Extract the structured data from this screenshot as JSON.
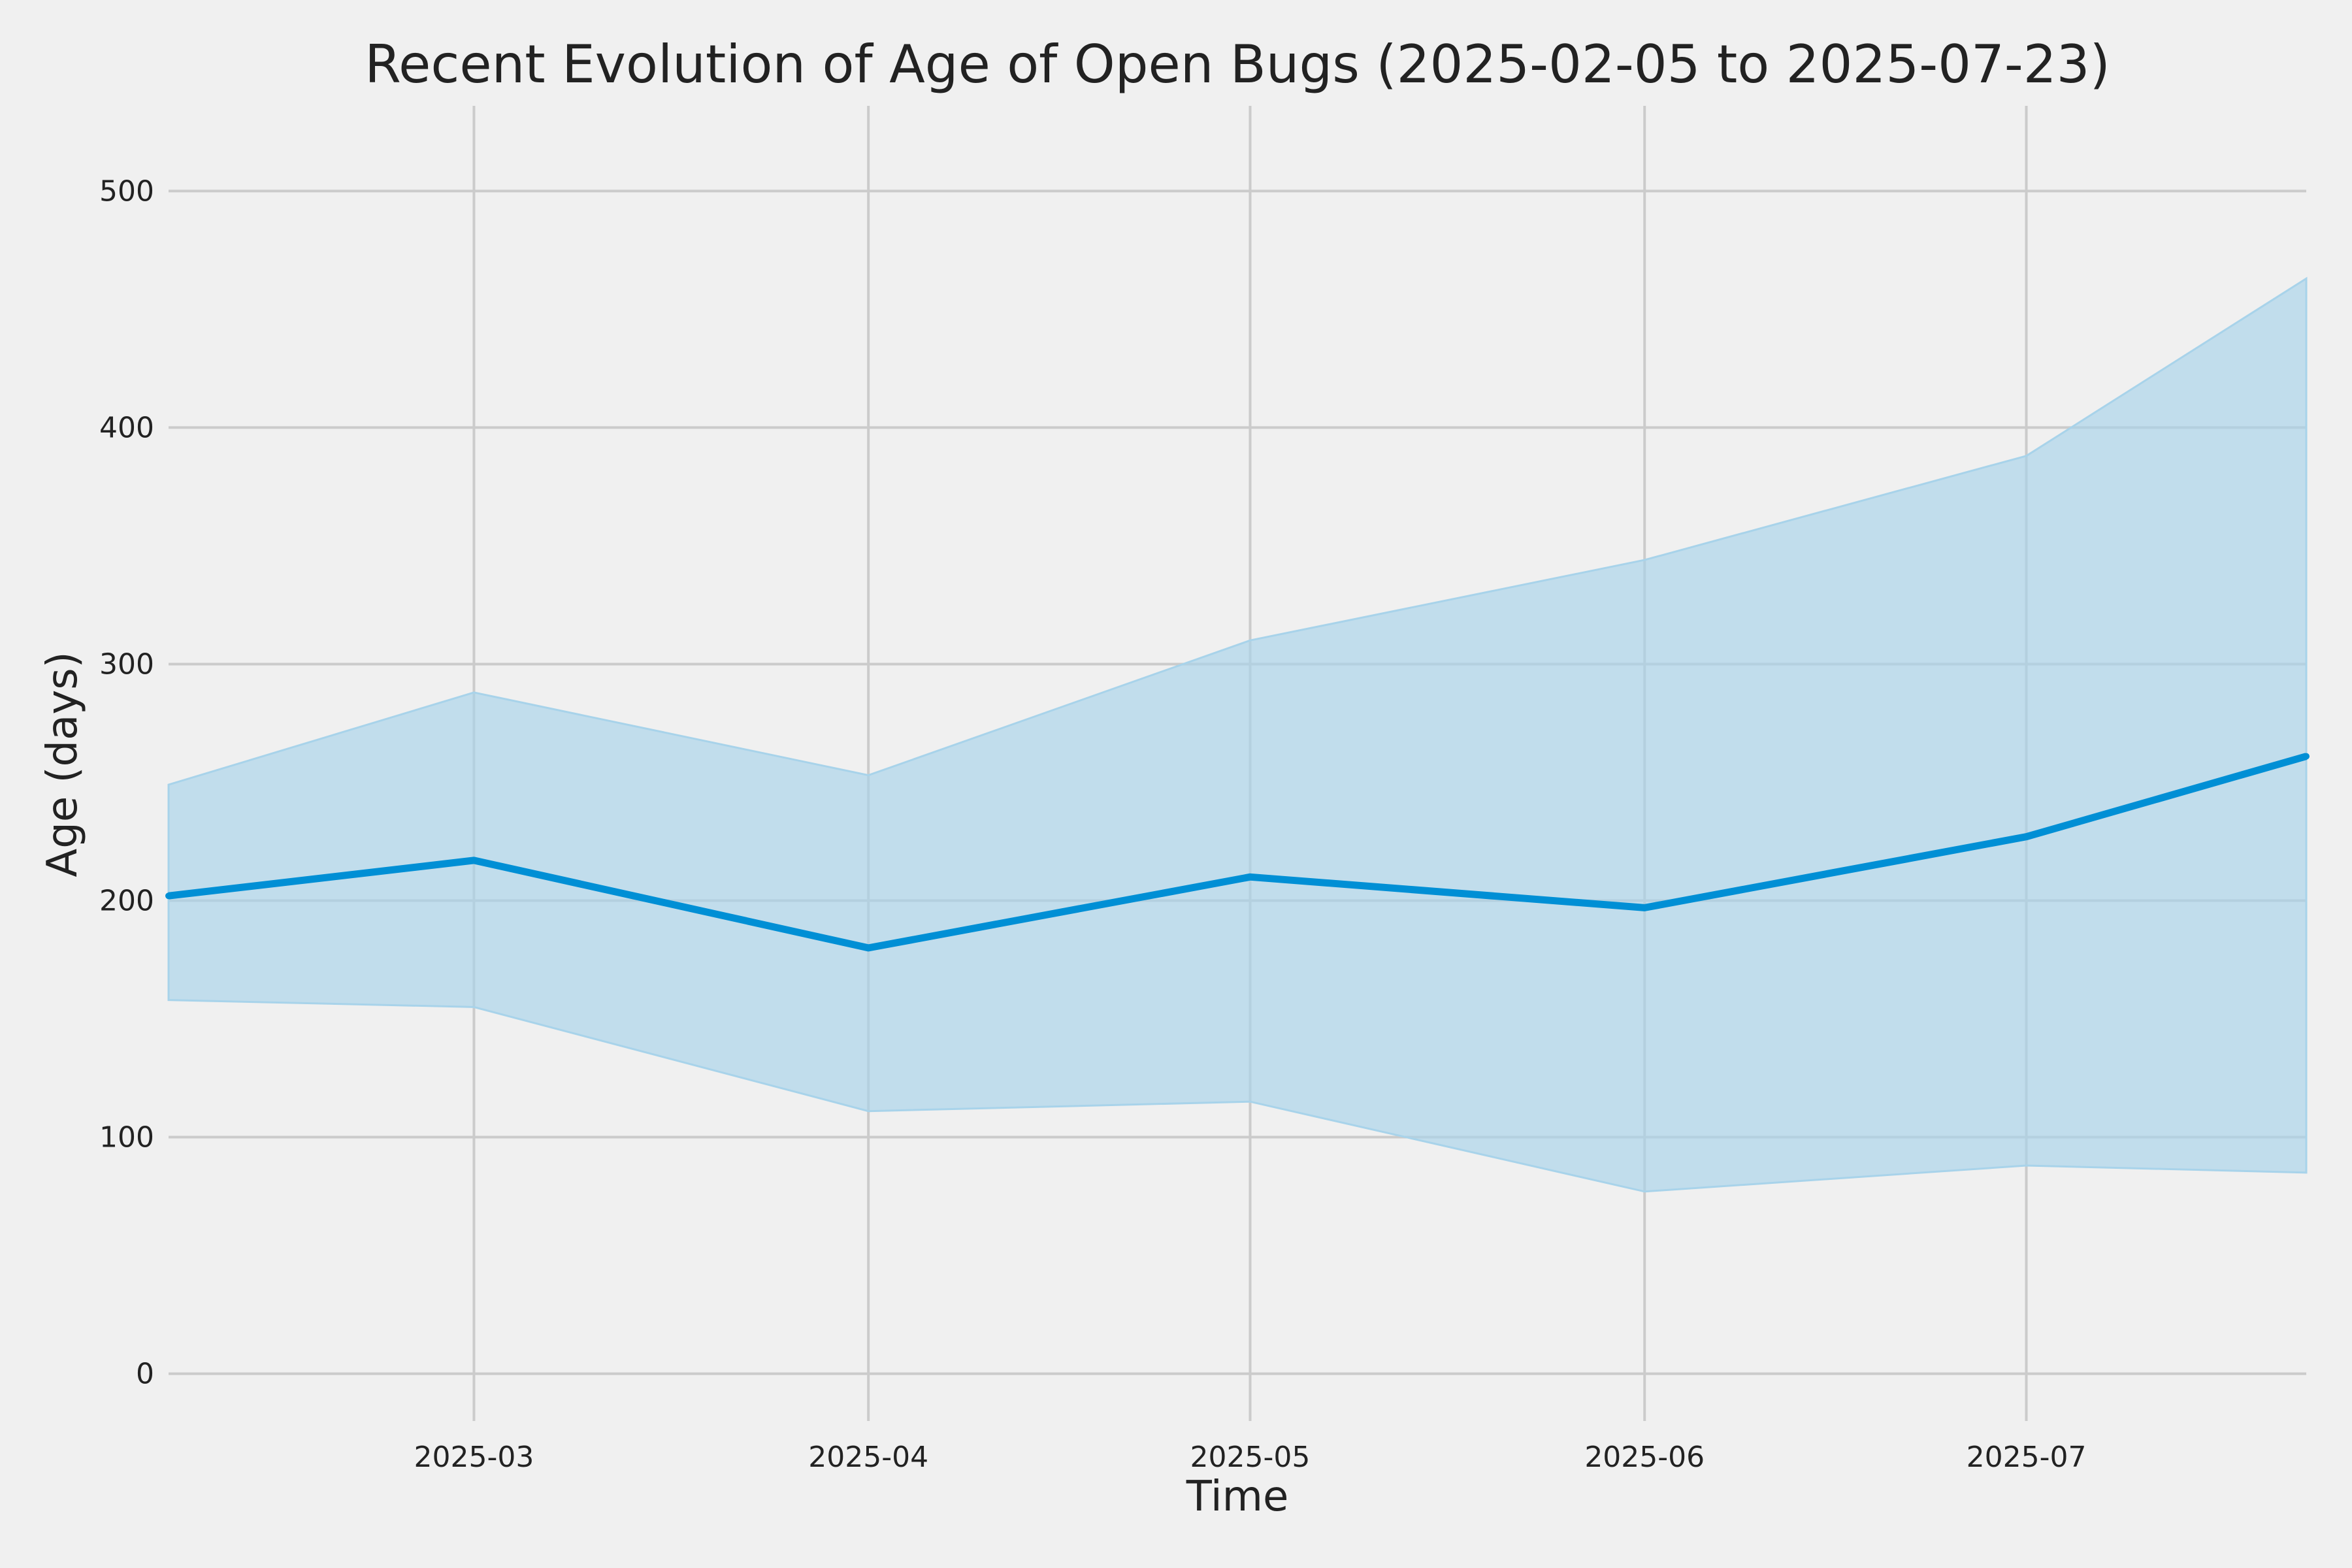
{
  "chart_data": {
    "type": "line",
    "title": "Recent Evolution of Age of Open Bugs (2025-02-05 to 2025-07-23)",
    "xlabel": "Time",
    "ylabel": "Age (days)",
    "x_range": [
      "2025-02-05",
      "2025-07-23"
    ],
    "ylim": [
      -20,
      536
    ],
    "x_ticks": [
      "2025-03-01",
      "2025-04-01",
      "2025-05-01",
      "2025-06-01",
      "2025-07-01"
    ],
    "x_tick_labels": [
      "2025-03",
      "2025-04",
      "2025-05",
      "2025-06",
      "2025-07"
    ],
    "y_ticks": [
      0,
      100,
      200,
      300,
      400,
      500
    ],
    "y_tick_labels": [
      "0",
      "100",
      "200",
      "300",
      "400",
      "500"
    ],
    "grid": true,
    "series": [
      {
        "color": "#008fd5",
        "x": [
          "2025-02-05",
          "2025-03-01",
          "2025-04-01",
          "2025-05-01",
          "2025-06-01",
          "2025-07-01",
          "2025-07-23"
        ],
        "values": [
          202,
          217,
          180,
          210,
          197,
          227,
          261
        ],
        "band_upper": [
          249,
          288,
          253,
          310,
          344,
          388,
          463
        ],
        "band_lower": [
          158,
          155,
          111,
          115,
          77,
          88,
          85
        ],
        "band_color": "#a8d3ea"
      }
    ]
  }
}
